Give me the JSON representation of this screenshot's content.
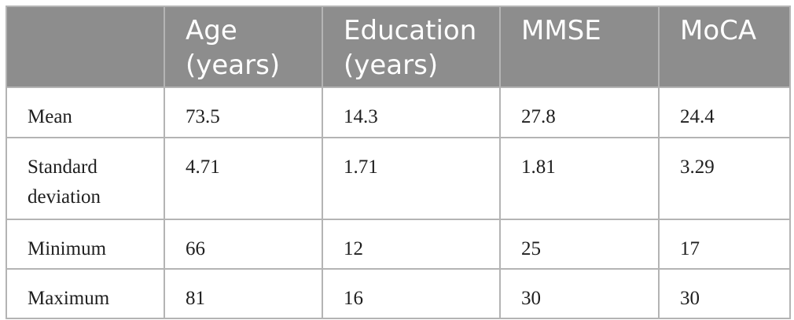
{
  "table": {
    "headers": [
      {
        "line1": "",
        "line2": ""
      },
      {
        "line1": "Age",
        "line2": "(years)"
      },
      {
        "line1": "Education",
        "line2": "(years)"
      },
      {
        "line1": "MMSE",
        "line2": ""
      },
      {
        "line1": "MoCA",
        "line2": ""
      }
    ],
    "rows": [
      {
        "label": "Mean",
        "values": [
          "73.5",
          "14.3",
          "27.8",
          "24.4"
        ]
      },
      {
        "label_line1": "Standard",
        "label_line2": "deviation",
        "values": [
          "4.71",
          "1.71",
          "1.81",
          "3.29"
        ]
      },
      {
        "label": "Minimum",
        "values": [
          "66",
          "12",
          "25",
          "17"
        ]
      },
      {
        "label": "Maximum",
        "values": [
          "81",
          "16",
          "30",
          "30"
        ]
      }
    ]
  },
  "colors": {
    "header_background": "#8d8d8d",
    "header_text": "#ffffff",
    "border": "#b4b4b4",
    "body_text": "#1e1e1e"
  }
}
